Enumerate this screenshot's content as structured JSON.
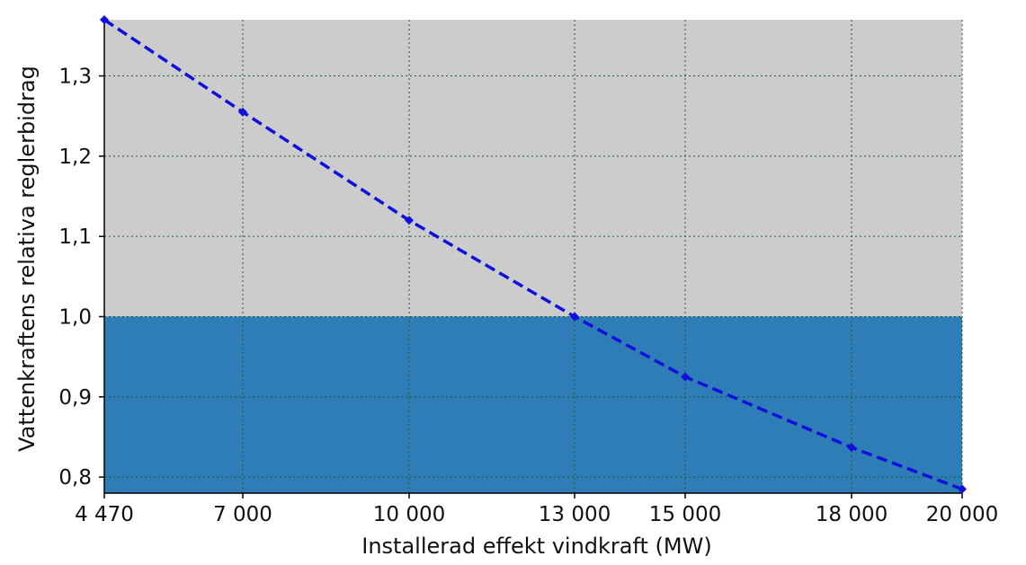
{
  "chart_data": {
    "type": "line",
    "title": "",
    "xlabel": "Installerad effekt vindkraft (MW)",
    "ylabel": "Vattenkraftens relativa reglerbidrag",
    "x_tick_labels": [
      "4 470",
      "7 000",
      "10 000",
      "13 000",
      "15 000",
      "18 000",
      "20 000"
    ],
    "y_tick_labels": [
      "0,8",
      "0,9",
      "1,0",
      "1,1",
      "1,2",
      "1,3"
    ],
    "y_ticks": [
      0.8,
      0.9,
      1.0,
      1.1,
      1.2,
      1.3
    ],
    "xlim": [
      4470,
      20000
    ],
    "ylim": [
      0.78,
      1.37
    ],
    "grid": true,
    "x": [
      4470,
      7000,
      10000,
      13000,
      15000,
      18000,
      20000
    ],
    "series": [
      {
        "values": [
          1.37,
          1.255,
          1.12,
          1.0,
          0.925,
          0.837,
          0.785
        ],
        "color": "#1010dd",
        "style": "dashed",
        "marker": "diamond"
      }
    ],
    "regions": [
      {
        "y_from": 0.78,
        "y_to": 1.0,
        "color": "#2e7db6"
      },
      {
        "y_from": 1.0,
        "y_to": 1.37,
        "color": "#cccccc"
      }
    ]
  }
}
